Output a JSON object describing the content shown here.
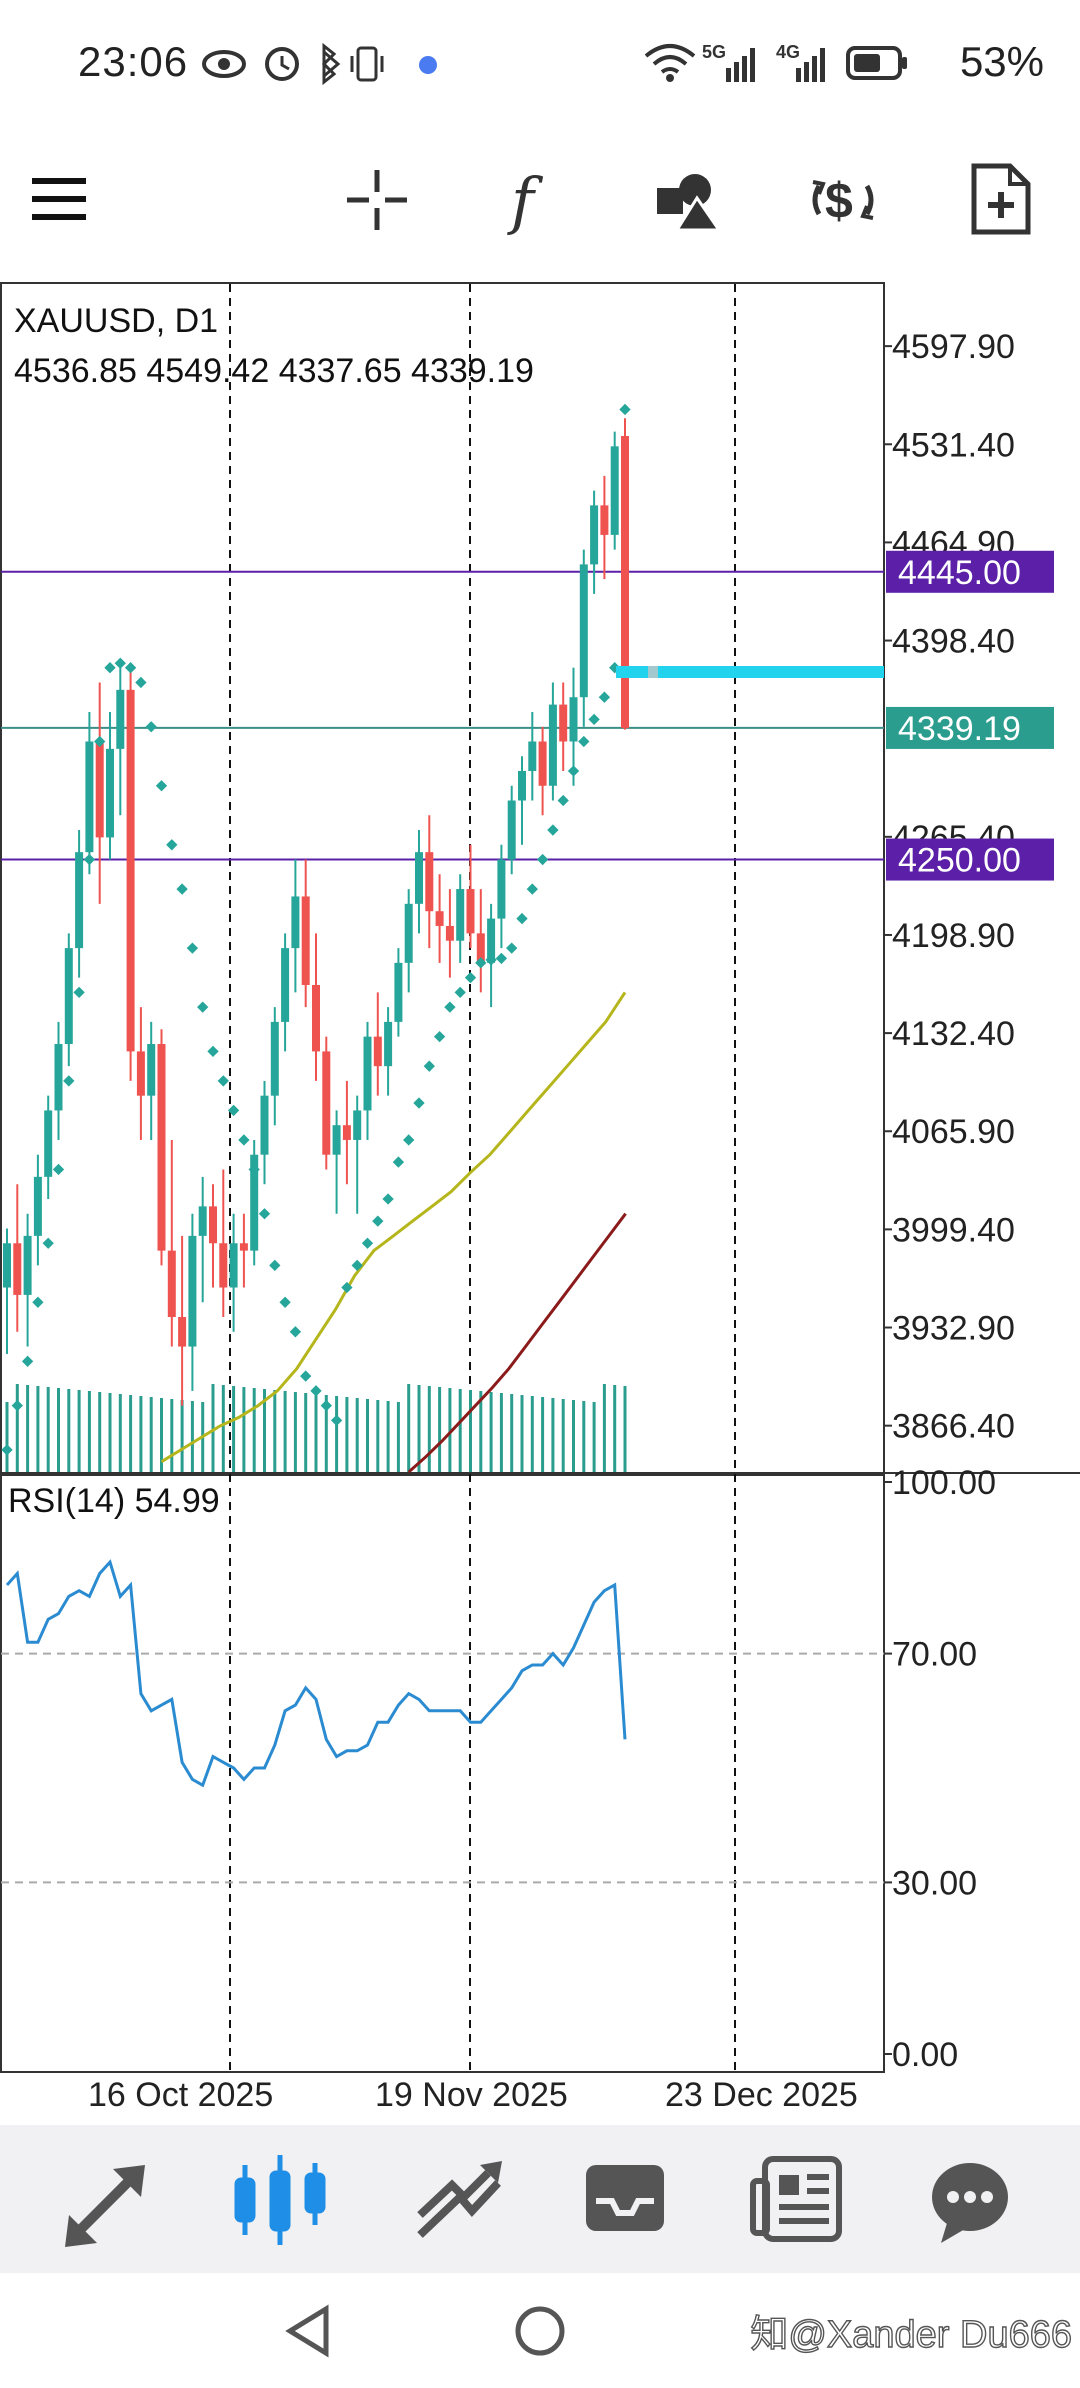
{
  "status": {
    "time": "23:06",
    "battery": "53%",
    "signal_5g": "5G",
    "signal_4g": "4G"
  },
  "toolbar": {
    "icons": [
      "menu-icon",
      "crosshair-icon",
      "indicator-function-icon",
      "objects-icon",
      "trade-dollar-icon",
      "new-order-icon"
    ]
  },
  "chart": {
    "symbol_timeframe": "XAUUSD, D1",
    "ohlc": "4536.85 4549.42 4337.65 4339.19",
    "price_axis": [
      "4597.90",
      "4531.40",
      "4464.90",
      "4398.40",
      "4265.40",
      "4198.90",
      "4132.40",
      "4065.90",
      "3999.40",
      "3932.90",
      "3866.40"
    ],
    "price_tags": [
      {
        "value": "4445.00",
        "color": "#5b1fa8"
      },
      {
        "value": "4339.19",
        "color": "#2a9d8f"
      },
      {
        "value": "4250.00",
        "color": "#5b1fa8"
      }
    ],
    "rsi_label": "RSI(14) 54.99",
    "rsi_axis": [
      "100.00",
      "70.00",
      "30.00",
      "0.00"
    ],
    "dates": [
      "16 Oct 2025",
      "19 Nov 2025",
      "23 Dec 2025"
    ],
    "colors": {
      "bull": "#26a69a",
      "bear": "#ef5350",
      "rsi": "#2b8bd1",
      "ma_fast": "#b5b51c",
      "ma_slow": "#8b1a1a",
      "sar": "#26a69a",
      "highlight": "#22d3ee"
    }
  },
  "chart_data": {
    "type": "candlestick",
    "symbol": "XAUUSD",
    "timeframe": "D1",
    "ylim": [
      3835,
      4640
    ],
    "horizontal_levels": [
      4445.0,
      4339.19,
      4250.0
    ],
    "candles": [
      [
        3960,
        4000,
        3915,
        3990
      ],
      [
        3990,
        4030,
        3930,
        3955
      ],
      [
        3955,
        4010,
        3920,
        3995
      ],
      [
        3995,
        4050,
        3975,
        4035
      ],
      [
        4035,
        4090,
        4020,
        4080
      ],
      [
        4080,
        4140,
        4060,
        4125
      ],
      [
        4125,
        4200,
        4110,
        4190
      ],
      [
        4190,
        4270,
        4170,
        4255
      ],
      [
        4255,
        4350,
        4240,
        4330
      ],
      [
        4330,
        4370,
        4220,
        4265
      ],
      [
        4265,
        4350,
        4250,
        4325
      ],
      [
        4325,
        4380,
        4280,
        4365
      ],
      [
        4365,
        4380,
        4100,
        4120
      ],
      [
        4120,
        4150,
        4060,
        4090
      ],
      [
        4090,
        4140,
        4060,
        4125
      ],
      [
        4125,
        4135,
        3975,
        3985
      ],
      [
        3985,
        4060,
        3920,
        3940
      ],
      [
        3940,
        3995,
        3880,
        3920
      ],
      [
        3920,
        4010,
        3890,
        3995
      ],
      [
        3995,
        4035,
        3950,
        4015
      ],
      [
        4015,
        4030,
        3960,
        3990
      ],
      [
        3990,
        4040,
        3940,
        3960
      ],
      [
        3960,
        4010,
        3930,
        3990
      ],
      [
        3990,
        4010,
        3960,
        3985
      ],
      [
        3985,
        4060,
        3975,
        4050
      ],
      [
        4050,
        4100,
        4030,
        4090
      ],
      [
        4090,
        4150,
        4070,
        4140
      ],
      [
        4140,
        4200,
        4120,
        4190
      ],
      [
        4190,
        4250,
        4160,
        4225
      ],
      [
        4225,
        4250,
        4150,
        4165
      ],
      [
        4165,
        4200,
        4100,
        4120
      ],
      [
        4120,
        4130,
        4040,
        4050
      ],
      [
        4050,
        4080,
        4010,
        4070
      ],
      [
        4070,
        4100,
        4030,
        4060
      ],
      [
        4060,
        4090,
        4010,
        4080
      ],
      [
        4080,
        4140,
        4060,
        4130
      ],
      [
        4130,
        4160,
        4090,
        4110
      ],
      [
        4110,
        4150,
        4090,
        4140
      ],
      [
        4140,
        4190,
        4130,
        4180
      ],
      [
        4180,
        4230,
        4160,
        4220
      ],
      [
        4220,
        4270,
        4200,
        4255
      ],
      [
        4255,
        4280,
        4190,
        4215
      ],
      [
        4215,
        4240,
        4180,
        4205
      ],
      [
        4205,
        4230,
        4170,
        4195
      ],
      [
        4195,
        4240,
        4180,
        4230
      ],
      [
        4230,
        4260,
        4190,
        4200
      ],
      [
        4200,
        4230,
        4160,
        4180
      ],
      [
        4180,
        4220,
        4150,
        4210
      ],
      [
        4210,
        4260,
        4190,
        4250
      ],
      [
        4250,
        4300,
        4240,
        4290
      ],
      [
        4290,
        4320,
        4260,
        4310
      ],
      [
        4310,
        4350,
        4290,
        4330
      ],
      [
        4330,
        4340,
        4280,
        4300
      ],
      [
        4300,
        4370,
        4290,
        4355
      ],
      [
        4355,
        4370,
        4310,
        4330
      ],
      [
        4330,
        4380,
        4300,
        4360
      ],
      [
        4360,
        4460,
        4340,
        4450
      ],
      [
        4450,
        4500,
        4430,
        4490
      ],
      [
        4490,
        4510,
        4440,
        4470
      ],
      [
        4470,
        4540,
        4460,
        4530
      ],
      [
        4537,
        4549,
        4338,
        4339
      ]
    ],
    "sar": [
      3850,
      3880,
      3910,
      3950,
      3990,
      4040,
      4100,
      4160,
      4250,
      4330,
      4380,
      4383,
      4380,
      4370,
      4340,
      4300,
      4260,
      4230,
      4190,
      4150,
      4120,
      4100,
      4080,
      4060,
      4040,
      4010,
      3975,
      3950,
      3930,
      3900,
      3890,
      3880,
      3870,
      3960,
      3975,
      3990,
      4005,
      4020,
      4045,
      4060,
      4085,
      4110,
      4130,
      4150,
      4160,
      4170,
      4180,
      4182,
      4183,
      4190,
      4210,
      4230,
      4250,
      4270,
      4290,
      4310,
      4330,
      4345,
      4360,
      4380,
      4555
    ],
    "rsi": [
      82,
      84,
      72,
      72,
      76,
      77,
      80,
      81,
      80,
      84,
      86,
      80,
      82,
      63,
      60,
      61,
      62,
      51,
      48,
      47,
      52,
      51,
      50,
      48,
      50,
      50,
      54,
      60,
      61,
      64,
      62,
      55,
      52,
      53,
      53,
      54,
      58,
      58,
      61,
      63,
      62,
      60,
      60,
      60,
      60,
      58,
      58,
      60,
      62,
      64,
      67,
      68,
      68,
      70,
      68,
      71,
      75,
      79,
      81,
      82,
      55
    ],
    "rsi_ylim": [
      0,
      100
    ],
    "ma_fast": [
      3842,
      3850,
      3858,
      3866,
      3872,
      3880,
      3890,
      3905,
      3925,
      3945,
      3968,
      3985,
      3995,
      4005,
      4015,
      4025,
      4038,
      4050,
      4065,
      4080,
      4095,
      4110,
      4125,
      4140,
      4160
    ],
    "ma_slow": [
      3835,
      3845,
      3856,
      3868,
      3880,
      3892,
      3905,
      3920,
      3935,
      3950,
      3965,
      3980,
      3995,
      4010
    ],
    "xlabel": "",
    "ylabel": ""
  }
}
